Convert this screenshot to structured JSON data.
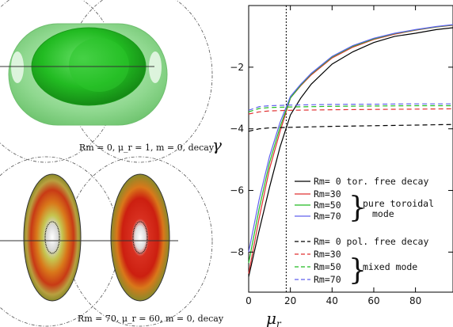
{
  "panel_top": {
    "caption": "Rm =  0, μ_r = 1, m = 0, decay"
  },
  "panel_bottom": {
    "caption": "Rm = 70, μ_r = 60, m = 0, decay"
  },
  "colors": {
    "outer_shell": "#8fd88f",
    "core": "#22bb22",
    "ring_red": "#cc1f10",
    "ring_orange": "#d9781a",
    "ring_olive": "#8a8a2a",
    "black_series": "#000000",
    "red_series": "#e03030",
    "green_series": "#22bb22",
    "blue_series": "#6060ee"
  },
  "chart_data": {
    "type": "line",
    "xlabel": "μ_r",
    "ylabel": "γ",
    "xlim": [
      0,
      98
    ],
    "ylim": [
      -9.3,
      0
    ],
    "xticks": [
      0,
      20,
      40,
      60,
      80
    ],
    "yticks": [
      -2,
      -4,
      -6,
      -8
    ],
    "vline_x": 18,
    "legend": {
      "placement": "lower-right",
      "group1_label": "Rm= 0  tor. free decay",
      "group1_brace": [
        "pure toroidal",
        "mode"
      ],
      "group2_label": "Rm= 0  pol. free decay",
      "group2_brace": "mixed mode"
    },
    "series": [
      {
        "name": "Rm= 0",
        "style": "solid",
        "color": "#000000",
        "x": [
          0,
          5,
          10,
          15,
          20,
          25,
          30,
          40,
          50,
          60,
          70,
          80,
          90,
          98
        ],
        "y": [
          -8.8,
          -7.3,
          -5.9,
          -4.6,
          -3.55,
          -3.0,
          -2.55,
          -1.9,
          -1.5,
          -1.2,
          -1.0,
          -0.9,
          -0.78,
          -0.72
        ]
      },
      {
        "name": "Rm=30",
        "style": "solid",
        "color": "#e03030",
        "x": [
          0,
          5,
          10,
          15,
          20,
          25,
          30,
          40,
          50,
          60,
          70,
          80,
          90,
          98
        ],
        "y": [
          -8.7,
          -6.9,
          -5.3,
          -4.1,
          -3.0,
          -2.6,
          -2.25,
          -1.7,
          -1.35,
          -1.1,
          -0.93,
          -0.8,
          -0.7,
          -0.64
        ]
      },
      {
        "name": "Rm=50",
        "style": "solid",
        "color": "#22bb22",
        "x": [
          0,
          5,
          10,
          15,
          20,
          25,
          30,
          40,
          50,
          60,
          70,
          80,
          90,
          98
        ],
        "y": [
          -8.35,
          -6.6,
          -5.1,
          -3.95,
          -3.0,
          -2.58,
          -2.22,
          -1.67,
          -1.32,
          -1.08,
          -0.91,
          -0.79,
          -0.69,
          -0.63
        ]
      },
      {
        "name": "Rm=70",
        "style": "solid",
        "color": "#6060ee",
        "x": [
          0,
          5,
          10,
          15,
          20,
          25,
          30,
          40,
          50,
          60,
          70,
          80,
          90,
          98
        ],
        "y": [
          -8.0,
          -6.3,
          -4.9,
          -3.8,
          -2.95,
          -2.55,
          -2.2,
          -1.65,
          -1.3,
          -1.06,
          -0.9,
          -0.78,
          -0.68,
          -0.62
        ]
      },
      {
        "name": "Rm= 0",
        "style": "dashed",
        "color": "#000000",
        "x": [
          0,
          5,
          10,
          20,
          40,
          60,
          80,
          98
        ],
        "y": [
          -4.08,
          -4.0,
          -3.97,
          -3.95,
          -3.92,
          -3.9,
          -3.88,
          -3.86
        ]
      },
      {
        "name": "Rm=30",
        "style": "dashed",
        "color": "#e03030",
        "x": [
          0,
          5,
          10,
          20,
          40,
          60,
          80,
          98
        ],
        "y": [
          -3.52,
          -3.45,
          -3.42,
          -3.4,
          -3.38,
          -3.37,
          -3.36,
          -3.35
        ]
      },
      {
        "name": "Rm=50",
        "style": "dashed",
        "color": "#22bb22",
        "x": [
          0,
          5,
          10,
          20,
          40,
          60,
          80,
          98
        ],
        "y": [
          -3.45,
          -3.34,
          -3.31,
          -3.29,
          -3.27,
          -3.26,
          -3.25,
          -3.25
        ]
      },
      {
        "name": "Rm=70",
        "style": "dashed",
        "color": "#6060ee",
        "x": [
          0,
          5,
          10,
          20,
          40,
          60,
          80,
          98
        ],
        "y": [
          -3.4,
          -3.28,
          -3.25,
          -3.23,
          -3.21,
          -3.2,
          -3.19,
          -3.19
        ]
      }
    ]
  }
}
